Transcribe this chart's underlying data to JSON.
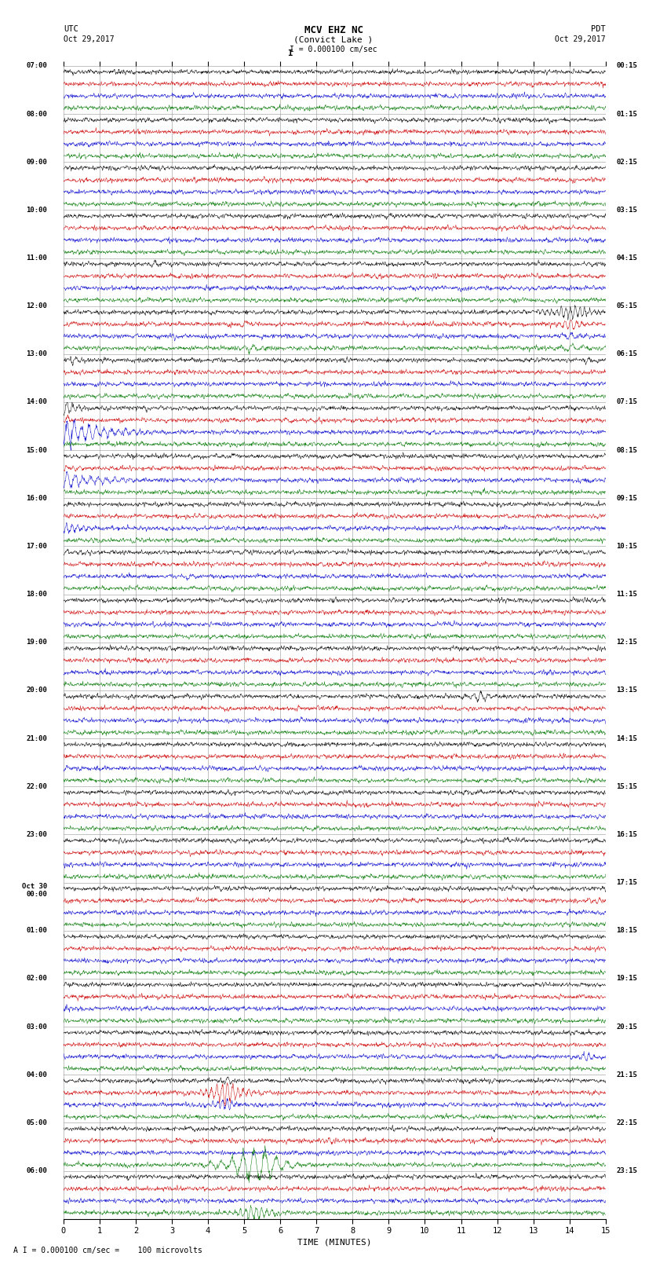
{
  "title_line1": "MCV EHZ NC",
  "title_line2": "(Convict Lake )",
  "scale_label": "I = 0.000100 cm/sec",
  "footer_label": "A I = 0.000100 cm/sec =    100 microvolts",
  "xlabel": "TIME (MINUTES)",
  "bg_color": "#ffffff",
  "grid_color": "#888888",
  "trace_colors": [
    "#000000",
    "#cc0000",
    "#0000cc",
    "#007700"
  ],
  "left_times": [
    "07:00",
    "08:00",
    "09:00",
    "10:00",
    "11:00",
    "12:00",
    "13:00",
    "14:00",
    "15:00",
    "16:00",
    "17:00",
    "18:00",
    "19:00",
    "20:00",
    "21:00",
    "22:00",
    "23:00",
    "Oct 30\n00:00",
    "01:00",
    "02:00",
    "03:00",
    "04:00",
    "05:00",
    "06:00"
  ],
  "right_times": [
    "00:15",
    "01:15",
    "02:15",
    "03:15",
    "04:15",
    "05:15",
    "06:15",
    "07:15",
    "08:15",
    "09:15",
    "10:15",
    "11:15",
    "12:15",
    "13:15",
    "14:15",
    "15:15",
    "16:15",
    "17:15",
    "18:15",
    "19:15",
    "20:15",
    "21:15",
    "22:15",
    "23:15"
  ],
  "n_hour_blocks": 24,
  "traces_per_block": 4,
  "minutes": 15,
  "noise_amplitude": 0.12,
  "seed": 12345,
  "events": [
    {
      "block": 6,
      "trace": 0,
      "time": 0.3,
      "amp": 3.0,
      "duration": 0.3
    },
    {
      "block": 6,
      "trace": 0,
      "time": 14.5,
      "amp": 2.0,
      "duration": 0.2
    },
    {
      "block": 7,
      "trace": 0,
      "time": 0.05,
      "amp": 5.0,
      "duration": 0.8
    },
    {
      "block": 7,
      "trace": 1,
      "time": 0.05,
      "amp": 2.0,
      "duration": 0.5
    },
    {
      "block": 7,
      "trace": 2,
      "time": 0.05,
      "amp": 8.0,
      "duration": 2.5
    },
    {
      "block": 7,
      "trace": 3,
      "time": 0.05,
      "amp": 1.5,
      "duration": 0.4
    },
    {
      "block": 8,
      "trace": 2,
      "time": 0.05,
      "amp": 5.0,
      "duration": 2.0
    },
    {
      "block": 8,
      "trace": 1,
      "time": 0.05,
      "amp": 1.5,
      "duration": 0.5
    },
    {
      "block": 9,
      "trace": 2,
      "time": 0.05,
      "amp": 3.0,
      "duration": 1.5
    },
    {
      "block": 9,
      "trace": 3,
      "time": 2.0,
      "amp": 2.0,
      "duration": 0.4
    },
    {
      "block": 10,
      "trace": 2,
      "time": 3.5,
      "amp": 2.0,
      "duration": 0.5
    },
    {
      "block": 10,
      "trace": 0,
      "time": 0.05,
      "amp": 1.5,
      "duration": 0.5
    },
    {
      "block": 5,
      "trace": 0,
      "time": 14.0,
      "amp": 4.0,
      "duration": 1.5
    },
    {
      "block": 5,
      "trace": 1,
      "time": 14.0,
      "amp": 3.0,
      "duration": 1.0
    },
    {
      "block": 5,
      "trace": 2,
      "time": 14.0,
      "amp": 2.0,
      "duration": 0.8
    },
    {
      "block": 5,
      "trace": 3,
      "time": 14.0,
      "amp": 2.5,
      "duration": 0.8
    },
    {
      "block": 5,
      "trace": 1,
      "time": 5.0,
      "amp": 2.5,
      "duration": 0.4
    },
    {
      "block": 5,
      "trace": 3,
      "time": 5.2,
      "amp": 2.5,
      "duration": 0.5
    },
    {
      "block": 4,
      "trace": 0,
      "time": 2.5,
      "amp": 2.0,
      "duration": 0.3
    },
    {
      "block": 13,
      "trace": 0,
      "time": 11.5,
      "amp": 3.5,
      "duration": 0.8
    },
    {
      "block": 14,
      "trace": 2,
      "time": 0.05,
      "amp": 2.0,
      "duration": 0.5
    },
    {
      "block": 11,
      "trace": 0,
      "time": 7.5,
      "amp": 1.5,
      "duration": 0.3
    },
    {
      "block": 17,
      "trace": 1,
      "time": 14.8,
      "amp": 2.5,
      "duration": 0.3
    },
    {
      "block": 20,
      "trace": 0,
      "time": 4.8,
      "amp": 2.0,
      "duration": 0.4
    },
    {
      "block": 20,
      "trace": 2,
      "time": 14.5,
      "amp": 2.5,
      "duration": 0.5
    },
    {
      "block": 21,
      "trace": 1,
      "time": 4.5,
      "amp": 8.0,
      "duration": 1.0
    },
    {
      "block": 21,
      "trace": 2,
      "time": 4.5,
      "amp": 4.0,
      "duration": 0.8
    },
    {
      "block": 21,
      "trace": 0,
      "time": 4.5,
      "amp": 2.0,
      "duration": 0.5
    },
    {
      "block": 22,
      "trace": 3,
      "time": 5.2,
      "amp": 9.0,
      "duration": 1.5
    },
    {
      "block": 22,
      "trace": 3,
      "time": 5.5,
      "amp": 6.0,
      "duration": 1.0
    },
    {
      "block": 23,
      "trace": 3,
      "time": 5.3,
      "amp": 5.0,
      "duration": 1.0
    },
    {
      "block": 19,
      "trace": 2,
      "time": 0.05,
      "amp": 2.5,
      "duration": 0.5
    },
    {
      "block": 15,
      "trace": 3,
      "time": 2.5,
      "amp": 1.5,
      "duration": 0.3
    },
    {
      "block": 3,
      "trace": 0,
      "time": 9.0,
      "amp": 1.5,
      "duration": 0.3
    },
    {
      "block": 3,
      "trace": 0,
      "time": 14.5,
      "amp": 1.5,
      "duration": 0.2
    }
  ]
}
